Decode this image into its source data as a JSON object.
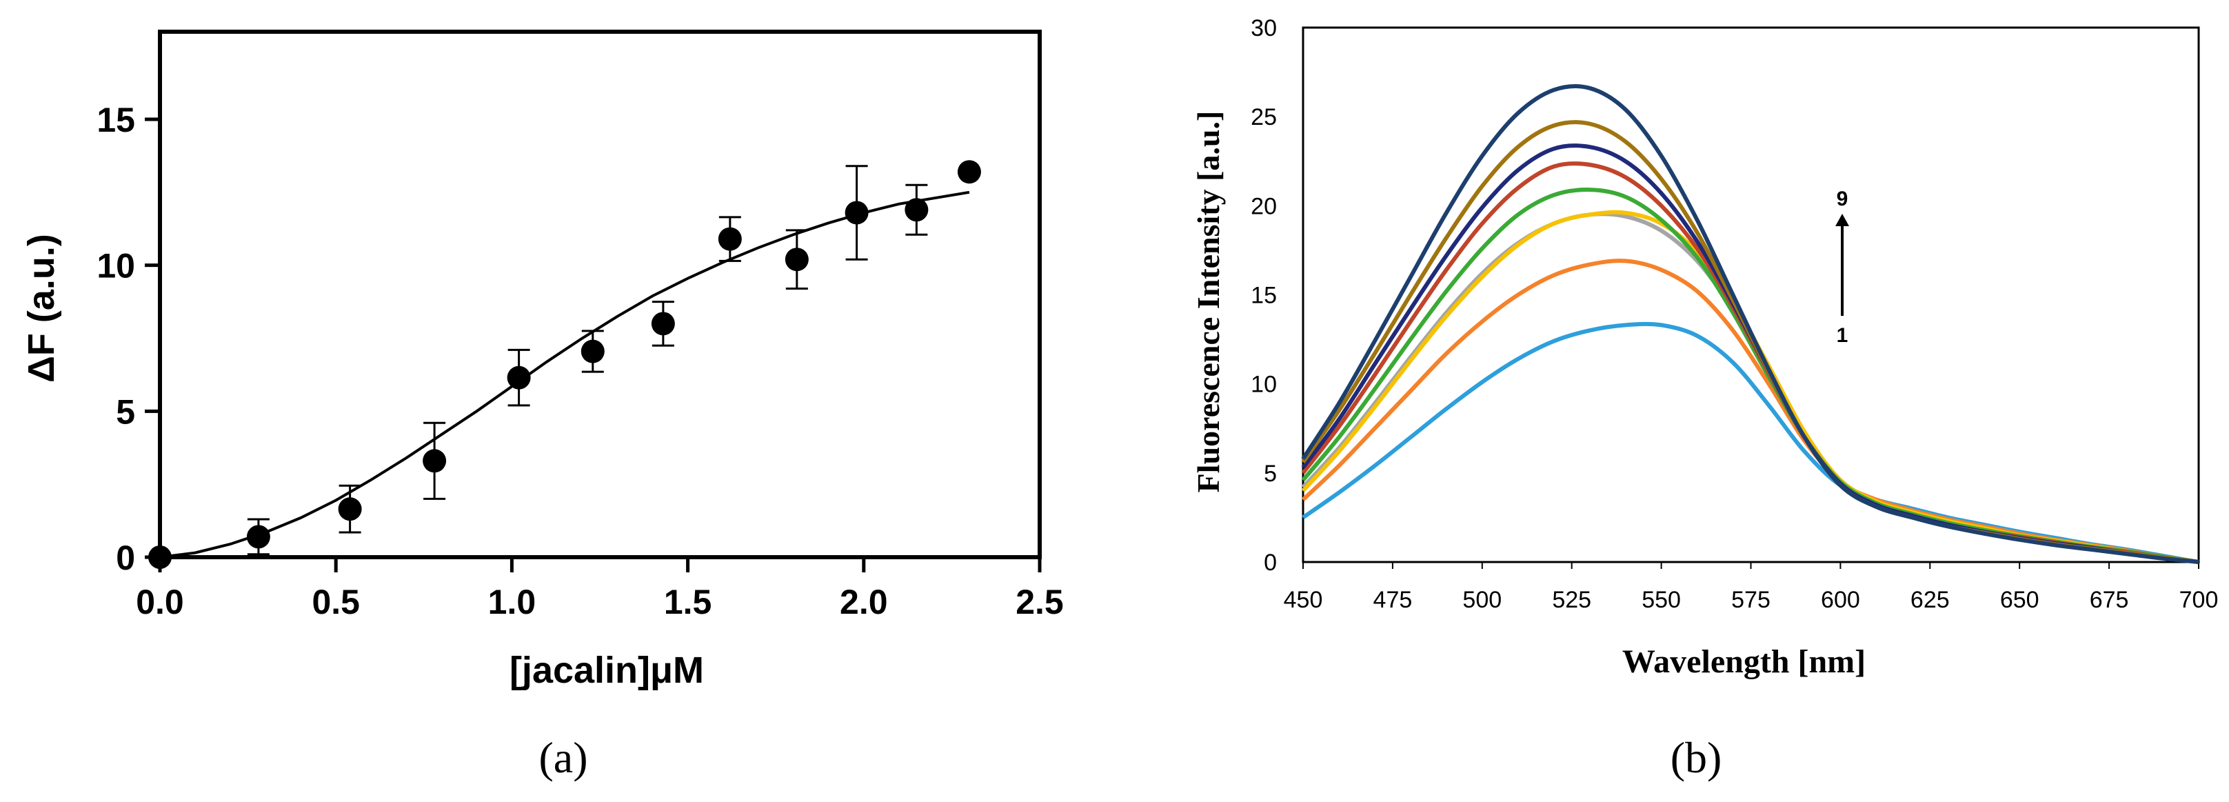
{
  "chart_data": [
    {
      "type": "scatter",
      "panel_label": "(a)",
      "xlabel": "[jacalin]μM",
      "ylabel": "ΔF (a.u.)",
      "xlim": [
        0,
        2.5
      ],
      "ylim": [
        0,
        18
      ],
      "x_ticks": [
        "0.0",
        "0.5",
        "1.0",
        "1.5",
        "2.0",
        "2.5"
      ],
      "y_ticks": [
        "0",
        "5",
        "10",
        "15"
      ],
      "x_tick_values": [
        0,
        0.5,
        1.0,
        1.5,
        2.0,
        2.5
      ],
      "y_tick_values": [
        0,
        5,
        10,
        15
      ],
      "points": [
        {
          "x": 0.0,
          "y": 0.0,
          "err": 0
        },
        {
          "x": 0.28,
          "y": 0.7,
          "err": 0.6
        },
        {
          "x": 0.54,
          "y": 1.65,
          "err": 0.8
        },
        {
          "x": 0.78,
          "y": 3.3,
          "err": 1.3
        },
        {
          "x": 1.02,
          "y": 6.15,
          "err": 0.95
        },
        {
          "x": 1.23,
          "y": 7.05,
          "err": 0.7
        },
        {
          "x": 1.43,
          "y": 8.0,
          "err": 0.75
        },
        {
          "x": 1.62,
          "y": 10.9,
          "err": 0.75
        },
        {
          "x": 1.81,
          "y": 10.2,
          "err": 1.0
        },
        {
          "x": 1.98,
          "y": 11.8,
          "err": 1.6
        },
        {
          "x": 2.15,
          "y": 11.9,
          "err": 0.85
        },
        {
          "x": 2.3,
          "y": 13.2,
          "err": 0
        }
      ],
      "fit_curve": {
        "x": [
          0.0,
          0.1,
          0.2,
          0.3,
          0.4,
          0.5,
          0.6,
          0.7,
          0.8,
          0.9,
          1.0,
          1.1,
          1.2,
          1.3,
          1.4,
          1.5,
          1.6,
          1.7,
          1.8,
          1.9,
          2.0,
          2.1,
          2.2,
          2.3
        ],
        "y": [
          0.0,
          0.15,
          0.45,
          0.85,
          1.35,
          1.95,
          2.65,
          3.4,
          4.2,
          5.0,
          5.85,
          6.7,
          7.5,
          8.25,
          8.95,
          9.55,
          10.1,
          10.6,
          11.05,
          11.45,
          11.8,
          12.1,
          12.3,
          12.5
        ]
      }
    },
    {
      "type": "line",
      "panel_label": "(b)",
      "xlabel": "Wavelength [nm]",
      "ylabel": "Fluorescence Intensity [a.u.]",
      "xlim": [
        450,
        700
      ],
      "ylim": [
        0,
        30
      ],
      "x_ticks": [
        "450",
        "475",
        "500",
        "525",
        "550",
        "575",
        "600",
        "625",
        "650",
        "675",
        "700"
      ],
      "y_ticks": [
        "0",
        "5",
        "10",
        "15",
        "20",
        "25",
        "30"
      ],
      "x_tick_values": [
        450,
        475,
        500,
        525,
        550,
        575,
        600,
        625,
        650,
        675,
        700
      ],
      "y_tick_values": [
        0,
        5,
        10,
        15,
        20,
        25,
        30
      ],
      "x": [
        450,
        460,
        470,
        480,
        490,
        500,
        510,
        520,
        530,
        540,
        550,
        560,
        570,
        580,
        590,
        600,
        610,
        620,
        630,
        640,
        650,
        660,
        670,
        680,
        690,
        700
      ],
      "series": [
        {
          "color": "#2e9fdb",
          "values": [
            2.5,
            3.9,
            5.4,
            7.0,
            8.6,
            10.1,
            11.4,
            12.4,
            13.0,
            13.3,
            13.3,
            12.7,
            11.2,
            8.8,
            6.2,
            4.3,
            3.5,
            3.0,
            2.5,
            2.1,
            1.7,
            1.35,
            1.0,
            0.7,
            0.35,
            0.0
          ]
        },
        {
          "color": "#f5822a",
          "values": [
            3.5,
            5.4,
            7.5,
            9.6,
            11.7,
            13.5,
            15.0,
            16.1,
            16.7,
            16.9,
            16.4,
            15.2,
            13.0,
            10.0,
            6.8,
            4.5,
            3.5,
            2.9,
            2.4,
            2.0,
            1.6,
            1.25,
            0.95,
            0.65,
            0.3,
            0.0
          ]
        },
        {
          "color": "#a5a5a5",
          "values": [
            4.2,
            6.4,
            8.9,
            11.5,
            14.0,
            16.2,
            17.9,
            19.0,
            19.5,
            19.4,
            18.6,
            16.9,
            14.2,
            10.8,
            7.2,
            4.6,
            3.4,
            2.8,
            2.3,
            1.9,
            1.5,
            1.2,
            0.9,
            0.6,
            0.3,
            0.0
          ]
        },
        {
          "color": "#f7c200",
          "values": [
            4.0,
            6.2,
            8.7,
            11.3,
            13.8,
            16.0,
            17.8,
            19.0,
            19.5,
            19.6,
            19.0,
            17.4,
            14.6,
            11.0,
            7.3,
            4.6,
            3.4,
            2.8,
            2.3,
            1.9,
            1.5,
            1.2,
            0.9,
            0.6,
            0.3,
            0.0
          ]
        },
        {
          "color": "#3aaa35",
          "values": [
            4.6,
            7.0,
            9.7,
            12.5,
            15.2,
            17.6,
            19.5,
            20.6,
            20.9,
            20.5,
            19.2,
            17.1,
            14.0,
            10.4,
            7.0,
            4.5,
            3.3,
            2.7,
            2.2,
            1.8,
            1.45,
            1.15,
            0.85,
            0.6,
            0.3,
            0.0
          ]
        },
        {
          "color": "#c0452a",
          "values": [
            5.0,
            7.6,
            10.5,
            13.5,
            16.4,
            19.0,
            21.0,
            22.2,
            22.3,
            21.6,
            20.0,
            17.6,
            14.3,
            10.6,
            7.0,
            4.4,
            3.2,
            2.6,
            2.1,
            1.7,
            1.4,
            1.1,
            0.8,
            0.55,
            0.25,
            0.0
          ]
        },
        {
          "color": "#1f2a7a",
          "values": [
            5.3,
            8.0,
            11.1,
            14.2,
            17.2,
            19.9,
            22.0,
            23.2,
            23.3,
            22.5,
            20.7,
            18.0,
            14.5,
            10.7,
            7.0,
            4.4,
            3.2,
            2.6,
            2.1,
            1.7,
            1.35,
            1.05,
            0.8,
            0.5,
            0.25,
            0.0
          ]
        },
        {
          "color": "#a0750f",
          "values": [
            5.6,
            8.5,
            11.7,
            15.0,
            18.2,
            21.1,
            23.3,
            24.5,
            24.6,
            23.6,
            21.5,
            18.5,
            14.7,
            10.7,
            7.0,
            4.3,
            3.1,
            2.5,
            2.0,
            1.65,
            1.3,
            1.0,
            0.75,
            0.5,
            0.25,
            0.0
          ]
        },
        {
          "color": "#1d3f6e",
          "values": [
            5.8,
            8.9,
            12.4,
            16.0,
            19.6,
            22.8,
            25.2,
            26.5,
            26.6,
            25.4,
            22.8,
            19.2,
            15.0,
            10.8,
            7.0,
            4.3,
            3.1,
            2.5,
            2.0,
            1.6,
            1.25,
            0.95,
            0.7,
            0.45,
            0.2,
            0.0
          ]
        }
      ],
      "annotation_arrow": {
        "top_label": "9",
        "bottom_label": "1"
      }
    }
  ]
}
